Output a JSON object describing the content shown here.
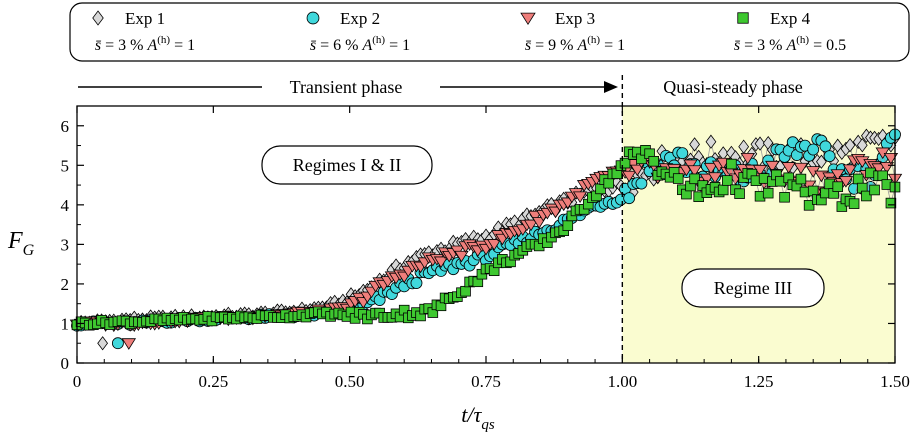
{
  "chart_data": {
    "type": "scatter",
    "xlabel": "t/τ_qs",
    "xlabel_main": "t/τ",
    "xlabel_sub": "qs",
    "ylabel": "F_G",
    "ylabel_main": "F",
    "ylabel_sub": "G",
    "xlim": [
      0,
      1.5
    ],
    "ylim": [
      0,
      6.5
    ],
    "xticks": [
      "0",
      "0.25",
      "0.50",
      "0.75",
      "1.00",
      "1.25",
      "1.50"
    ],
    "yticks": [
      "0",
      "1",
      "2",
      "3",
      "4",
      "5",
      "6"
    ],
    "grid": false,
    "legend_position": "top",
    "phases": {
      "transient": "Transient phase",
      "quasi_steady": "Quasi-steady phase",
      "boundary_x": 1.0,
      "shade_color": "#fafcd0"
    },
    "annotations": {
      "regime_1_2": "Regimes I & II",
      "regime_3": "Regime III"
    },
    "series": [
      {
        "name": "Exp 1",
        "params": "s̄ = 3 % A(h) = 1",
        "param_s": "3",
        "param_a": "1",
        "marker": "diamond",
        "color": "#d8d8d8",
        "anchors": [
          [
            0,
            1.0
          ],
          [
            0.1,
            1.1
          ],
          [
            0.2,
            1.15
          ],
          [
            0.3,
            1.2
          ],
          [
            0.4,
            1.3
          ],
          [
            0.45,
            1.4
          ],
          [
            0.5,
            1.6
          ],
          [
            0.55,
            2.0
          ],
          [
            0.6,
            2.5
          ],
          [
            0.65,
            2.8
          ],
          [
            0.7,
            3.0
          ],
          [
            0.75,
            3.2
          ],
          [
            0.8,
            3.5
          ],
          [
            0.85,
            3.8
          ],
          [
            0.9,
            4.1
          ],
          [
            0.95,
            4.4
          ],
          [
            1.0,
            4.5
          ],
          [
            1.05,
            4.9
          ],
          [
            1.1,
            5.2
          ],
          [
            1.2,
            5.3
          ],
          [
            1.3,
            5.2
          ],
          [
            1.4,
            5.3
          ],
          [
            1.5,
            5.6
          ]
        ],
        "outliers": [
          [
            0.047,
            0.5
          ]
        ]
      },
      {
        "name": "Exp 2",
        "params": "s̄ = 6 % A(h) = 1",
        "param_s": "6",
        "param_a": "1",
        "marker": "circle",
        "color": "#40d8dc",
        "anchors": [
          [
            0,
            1.0
          ],
          [
            0.1,
            1.0
          ],
          [
            0.2,
            1.1
          ],
          [
            0.3,
            1.15
          ],
          [
            0.4,
            1.2
          ],
          [
            0.45,
            1.25
          ],
          [
            0.5,
            1.3
          ],
          [
            0.55,
            1.6
          ],
          [
            0.6,
            2.0
          ],
          [
            0.65,
            2.3
          ],
          [
            0.7,
            2.5
          ],
          [
            0.75,
            2.7
          ],
          [
            0.8,
            3.0
          ],
          [
            0.85,
            3.3
          ],
          [
            0.9,
            3.6
          ],
          [
            0.95,
            4.0
          ],
          [
            1.0,
            4.2
          ],
          [
            1.05,
            5.0
          ],
          [
            1.1,
            5.2
          ],
          [
            1.15,
            4.8
          ],
          [
            1.2,
            4.7
          ],
          [
            1.25,
            4.8
          ],
          [
            1.3,
            5.3
          ],
          [
            1.35,
            5.5
          ],
          [
            1.4,
            4.8
          ],
          [
            1.45,
            4.7
          ],
          [
            1.5,
            5.6
          ]
        ],
        "outliers": [
          [
            0.075,
            0.5
          ]
        ]
      },
      {
        "name": "Exp 3",
        "params": "s̄ = 9 % A(h) = 1",
        "param_s": "9",
        "param_a": "1",
        "marker": "triangle-down",
        "color": "#ef7e7b",
        "anchors": [
          [
            0,
            1.0
          ],
          [
            0.1,
            1.0
          ],
          [
            0.2,
            1.1
          ],
          [
            0.3,
            1.15
          ],
          [
            0.4,
            1.25
          ],
          [
            0.45,
            1.3
          ],
          [
            0.5,
            1.4
          ],
          [
            0.55,
            1.9
          ],
          [
            0.6,
            2.3
          ],
          [
            0.65,
            2.6
          ],
          [
            0.7,
            2.8
          ],
          [
            0.75,
            3.0
          ],
          [
            0.8,
            3.3
          ],
          [
            0.85,
            3.7
          ],
          [
            0.9,
            4.1
          ],
          [
            0.95,
            4.6
          ],
          [
            1.0,
            4.8
          ],
          [
            1.05,
            4.9
          ],
          [
            1.1,
            4.6
          ],
          [
            1.2,
            4.9
          ],
          [
            1.3,
            4.7
          ],
          [
            1.4,
            4.6
          ],
          [
            1.45,
            5.1
          ],
          [
            1.5,
            5.0
          ]
        ],
        "outliers": [
          [
            0.095,
            0.5
          ]
        ]
      },
      {
        "name": "Exp 4",
        "params": "s̄ = 3 % A(h) = 0.5",
        "param_s": "3",
        "param_a": "0.5",
        "marker": "square",
        "color": "#3ec830",
        "anchors": [
          [
            0,
            1.0
          ],
          [
            0.1,
            1.05
          ],
          [
            0.2,
            1.1
          ],
          [
            0.3,
            1.15
          ],
          [
            0.4,
            1.2
          ],
          [
            0.45,
            1.25
          ],
          [
            0.5,
            1.2
          ],
          [
            0.55,
            1.2
          ],
          [
            0.6,
            1.25
          ],
          [
            0.65,
            1.3
          ],
          [
            0.7,
            1.8
          ],
          [
            0.75,
            2.3
          ],
          [
            0.8,
            2.7
          ],
          [
            0.85,
            3.0
          ],
          [
            0.9,
            3.5
          ],
          [
            0.95,
            4.3
          ],
          [
            1.0,
            5.0
          ],
          [
            1.05,
            5.3
          ],
          [
            1.1,
            4.5
          ],
          [
            1.15,
            4.3
          ],
          [
            1.2,
            4.7
          ],
          [
            1.25,
            4.4
          ],
          [
            1.3,
            4.5
          ],
          [
            1.35,
            4.2
          ],
          [
            1.4,
            4.2
          ],
          [
            1.45,
            4.5
          ],
          [
            1.5,
            4.3
          ]
        ],
        "outliers": []
      }
    ]
  }
}
